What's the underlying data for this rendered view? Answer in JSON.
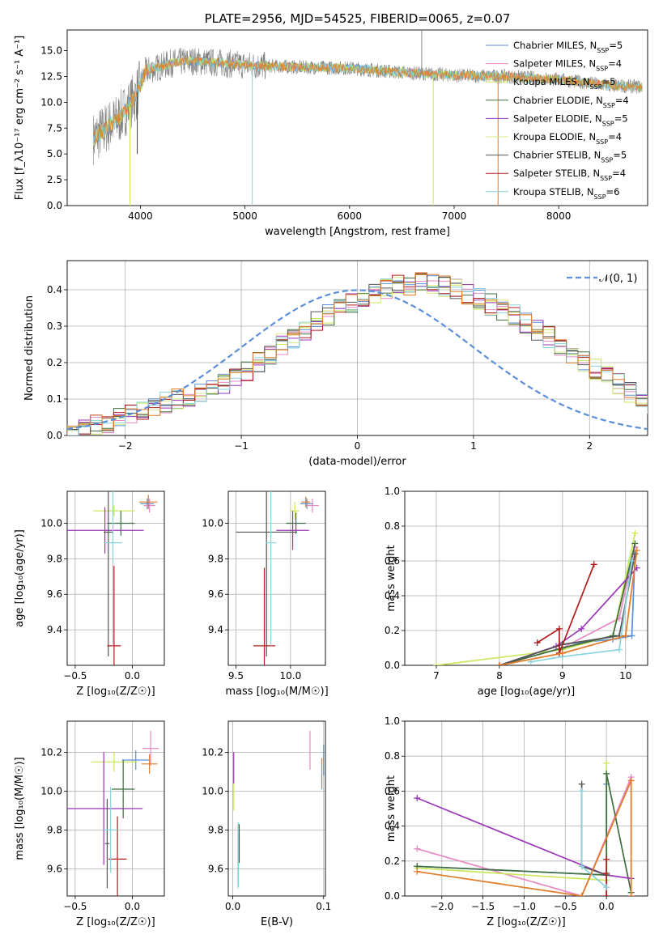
{
  "colors": {
    "Chabrier MILES": "#5b8fd9",
    "Salpeter MILES": "#e78ac3",
    "Kroupa MILES": "#c9e85a",
    "Chabrier ELODIE": "#3f6e3f",
    "Salpeter ELODIE": "#9a35b8",
    "Kroupa ELODIE": "#d8e888",
    "Chabrier STELIB": "#555555",
    "Salpeter STELIB": "#b21c1c",
    "Kroupa STELIB": "#88d3dc",
    "orange": "#e07b28"
  },
  "chart_data": [
    {
      "type": "line",
      "title": "PLATE=2956, MJD=54525, FIBERID=0065, z=0.07",
      "xlabel": "wavelength [Angstrom, rest frame]",
      "ylabel": "Flux [f_λ10⁻¹⁷ erg cm⁻² s⁻¹ A⁻¹]",
      "xlim": [
        3300,
        8850
      ],
      "ylim": [
        0,
        17
      ],
      "xticks": [
        "4000",
        "5000",
        "6000",
        "7000",
        "8000"
      ],
      "yticks": [
        "0.0",
        "2.5",
        "5.0",
        "7.5",
        "10.0",
        "12.5",
        "15.0"
      ],
      "legend_position": "top-right",
      "legend": [
        {
          "name": "Chabrier MILES",
          "nssp": "5"
        },
        {
          "name": "Salpeter MILES",
          "nssp": "4"
        },
        {
          "name": "Kroupa MILES",
          "nssp": "5"
        },
        {
          "name": "Chabrier ELODIE",
          "nssp": "4"
        },
        {
          "name": "Salpeter ELODIE",
          "nssp": "5"
        },
        {
          "name": "Kroupa ELODIE",
          "nssp": "4"
        },
        {
          "name": "Chabrier STELIB",
          "nssp": "5"
        },
        {
          "name": "Salpeter STELIB",
          "nssp": "4"
        },
        {
          "name": "Kroupa STELIB",
          "nssp": "6"
        }
      ],
      "continuum": {
        "x": [
          3550,
          3800,
          3950,
          4050,
          4300,
          4500,
          5000,
          5500,
          6000,
          6500,
          7000,
          7500,
          8000,
          8500,
          8800
        ],
        "y": [
          6.5,
          8.5,
          10.5,
          13.0,
          13.8,
          14.0,
          13.6,
          13.4,
          13.3,
          12.9,
          12.6,
          12.5,
          12.2,
          11.6,
          11.5
        ]
      }
    },
    {
      "type": "step",
      "xlabel": "(data-model)/error",
      "ylabel": "Normed distribution",
      "xlim": [
        -2.5,
        2.5
      ],
      "ylim": [
        0,
        0.48
      ],
      "xticks": [
        "−2",
        "−1",
        "0",
        "1",
        "2"
      ],
      "yticks": [
        "0.0",
        "0.1",
        "0.2",
        "0.3",
        "0.4"
      ],
      "legend_label": "𝒩(0, 1)",
      "legend_position": "top-right",
      "bin_width": 0.1,
      "bin_start": -2.5,
      "base_values": [
        0.018,
        0.024,
        0.03,
        0.036,
        0.045,
        0.055,
        0.068,
        0.08,
        0.09,
        0.1,
        0.108,
        0.118,
        0.13,
        0.14,
        0.16,
        0.18,
        0.2,
        0.225,
        0.25,
        0.27,
        0.29,
        0.31,
        0.33,
        0.345,
        0.36,
        0.375,
        0.39,
        0.4,
        0.41,
        0.415,
        0.42,
        0.415,
        0.41,
        0.4,
        0.39,
        0.375,
        0.36,
        0.345,
        0.33,
        0.31,
        0.29,
        0.27,
        0.25,
        0.225,
        0.2,
        0.18,
        0.16,
        0.14,
        0.12,
        0.105,
        0.09
      ]
    },
    {
      "type": "errorbar",
      "xlabel": "Z [log₁₀(Z/Z☉)]",
      "ylabel": "age  [log₁₀(age/yr)]",
      "xlim": [
        -0.57,
        0.28
      ],
      "ylim": [
        9.2,
        10.18
      ],
      "xticks": [
        "−0.5",
        "0.0"
      ],
      "xtick_values": [
        -0.5,
        0.0
      ],
      "yticks": [
        "9.4",
        "9.6",
        "9.8",
        "10.0"
      ],
      "ytick_values": [
        9.4,
        9.6,
        9.8,
        10.0
      ],
      "points": [
        {
          "s": "Chabrier MILES",
          "x": 0.13,
          "y": 10.11,
          "xe": 0.06,
          "ye": 0.03
        },
        {
          "s": "Salpeter MILES",
          "x": 0.15,
          "y": 10.1,
          "xe": 0.05,
          "ye": 0.04
        },
        {
          "s": "Kroupa MILES",
          "x": -0.16,
          "y": 10.07,
          "xe": 0.18,
          "ye": 0.03
        },
        {
          "s": "Chabrier ELODIE",
          "x": -0.1,
          "y": 10.0,
          "xe": 0.12,
          "ye": 0.07
        },
        {
          "s": "Salpeter ELODIE",
          "x": -0.24,
          "y": 9.96,
          "xe": 0.34,
          "ye": 0.13
        },
        {
          "s": "Chabrier STELIB",
          "x": -0.21,
          "y": 9.95,
          "xe": 0.04,
          "ye": 0.7
        },
        {
          "s": "Salpeter STELIB",
          "x": -0.16,
          "y": 9.31,
          "xe": 0.06,
          "ye": 0.45
        },
        {
          "s": "Kroupa STELIB",
          "x": -0.17,
          "y": 9.89,
          "xe": 0.08,
          "ye": 0.58
        },
        {
          "s": "orange",
          "x": 0.14,
          "y": 10.12,
          "xe": 0.08,
          "ye": 0.04
        }
      ]
    },
    {
      "type": "errorbar",
      "xlabel": "mass [log₁₀(M/M☉)]",
      "xlim": [
        9.43,
        10.32
      ],
      "ylim": [
        9.2,
        10.18
      ],
      "xticks": [
        "9.5",
        "10.0"
      ],
      "xtick_values": [
        9.5,
        10.0
      ],
      "yticks": [
        "9.4",
        "9.6",
        "9.8",
        "10.0"
      ],
      "ytick_values": [
        9.4,
        9.6,
        9.8,
        10.0
      ],
      "points": [
        {
          "s": "Chabrier MILES",
          "x": 10.15,
          "y": 10.11,
          "xe": 0.06,
          "ye": 0.03
        },
        {
          "s": "Salpeter MILES",
          "x": 10.2,
          "y": 10.1,
          "xe": 0.06,
          "ye": 0.04
        },
        {
          "s": "Kroupa MILES",
          "x": 10.04,
          "y": 10.07,
          "xe": 0.04,
          "ye": 0.05
        },
        {
          "s": "Chabrier ELODIE",
          "x": 10.05,
          "y": 10.0,
          "xe": 0.09,
          "ye": 0.06
        },
        {
          "s": "Salpeter ELODIE",
          "x": 10.02,
          "y": 9.96,
          "xe": 0.15,
          "ye": 0.11
        },
        {
          "s": "Chabrier STELIB",
          "x": 9.78,
          "y": 9.95,
          "xe": 0.28,
          "ye": 0.7
        },
        {
          "s": "Salpeter STELIB",
          "x": 9.76,
          "y": 9.31,
          "xe": 0.1,
          "ye": 0.44
        },
        {
          "s": "Kroupa STELIB",
          "x": 9.82,
          "y": 9.89,
          "xe": 0.05,
          "ye": 0.58
        },
        {
          "s": "orange",
          "x": 10.14,
          "y": 10.12,
          "xe": 0.04,
          "ye": 0.03
        }
      ]
    },
    {
      "type": "line",
      "xlabel": "age  [log₁₀(age/yr)]",
      "ylabel": "mass weight",
      "xlim": [
        6.5,
        10.35
      ],
      "ylim": [
        0,
        1.0
      ],
      "xticks": [
        "7",
        "8",
        "9",
        "10"
      ],
      "xtick_values": [
        7,
        8,
        9,
        10
      ],
      "yticks": [
        "0.0",
        "0.2",
        "0.4",
        "0.6",
        "0.8",
        "1.0"
      ],
      "ytick_values": [
        0,
        0.2,
        0.4,
        0.6,
        0.8,
        1.0
      ],
      "series": [
        {
          "s": "Chabrier MILES",
          "x": [
            8.0,
            9.0,
            9.8,
            10.1,
            10.15
          ],
          "y": [
            0.0,
            0.12,
            0.15,
            0.17,
            0.64
          ]
        },
        {
          "s": "Salpeter MILES",
          "x": [
            8.0,
            9.0,
            9.9,
            10.15
          ],
          "y": [
            0.0,
            0.1,
            0.27,
            0.68
          ]
        },
        {
          "s": "Kroupa MILES",
          "x": [
            7.0,
            9.0,
            9.8,
            10.15
          ],
          "y": [
            0.0,
            0.09,
            0.17,
            0.76
          ]
        },
        {
          "s": "Chabrier ELODIE",
          "x": [
            8.0,
            9.0,
            9.8,
            10.15
          ],
          "y": [
            0.0,
            0.1,
            0.17,
            0.7
          ]
        },
        {
          "s": "Salpeter ELODIE",
          "x": [
            8.0,
            8.9,
            9.3,
            10.18
          ],
          "y": [
            0.0,
            0.11,
            0.21,
            0.56
          ]
        },
        {
          "s": "Chabrier STELIB",
          "x": [
            8.0,
            9.0,
            9.9,
            10.15
          ],
          "y": [
            0.0,
            0.12,
            0.17,
            0.64
          ]
        },
        {
          "s": "Salpeter STELIB",
          "x": [
            8.6,
            8.95,
            8.95,
            9.5
          ],
          "y": [
            0.13,
            0.21,
            0.07,
            0.58
          ]
        },
        {
          "s": "Kroupa STELIB",
          "x": [
            8.5,
            9.0,
            9.9,
            10.1
          ],
          "y": [
            0.02,
            0.05,
            0.09,
            0.6
          ]
        },
        {
          "s": "orange",
          "x": [
            8.0,
            9.0,
            10.0,
            10.18
          ],
          "y": [
            0.0,
            0.07,
            0.17,
            0.66
          ]
        }
      ]
    },
    {
      "type": "errorbar",
      "xlabel": "Z [log₁₀(Z/Z☉)]",
      "ylabel": "mass [log₁₀(M/M☉)]",
      "xlim": [
        -0.57,
        0.28
      ],
      "ylim": [
        9.46,
        10.36
      ],
      "xticks": [
        "−0.5",
        "0.0"
      ],
      "xtick_values": [
        -0.5,
        0.0
      ],
      "yticks": [
        "9.6",
        "9.8",
        "10.0",
        "10.2"
      ],
      "ytick_values": [
        9.6,
        9.8,
        10.0,
        10.2
      ],
      "points": [
        {
          "s": "Chabrier MILES",
          "x": 0.03,
          "y": 10.16,
          "xe": 0.12,
          "ye": 0.05
        },
        {
          "s": "Salpeter MILES",
          "x": 0.16,
          "y": 10.22,
          "xe": 0.07,
          "ye": 0.09
        },
        {
          "s": "Kroupa MILES",
          "x": -0.16,
          "y": 10.15,
          "xe": 0.2,
          "ye": 0.05
        },
        {
          "s": "Chabrier ELODIE",
          "x": -0.08,
          "y": 10.01,
          "xe": 0.1,
          "ye": 0.15
        },
        {
          "s": "Salpeter ELODIE",
          "x": -0.25,
          "y": 9.91,
          "xe": 0.34,
          "ye": 0.29
        },
        {
          "s": "Chabrier STELIB",
          "x": -0.22,
          "y": 9.73,
          "xe": 0.02,
          "ye": 0.23
        },
        {
          "s": "Salpeter STELIB",
          "x": -0.13,
          "y": 9.65,
          "xe": 0.08,
          "ye": 0.22
        },
        {
          "s": "Kroupa STELIB",
          "x": -0.19,
          "y": 9.8,
          "xe": 0.06,
          "ye": 0.22
        },
        {
          "s": "orange",
          "x": 0.15,
          "y": 10.14,
          "xe": 0.07,
          "ye": 0.05
        }
      ]
    },
    {
      "type": "errorbar",
      "xlabel": "E(B-V)",
      "xlim": [
        -0.005,
        0.102
      ],
      "ylim": [
        9.46,
        10.36
      ],
      "xticks": [
        "0.0",
        "0.1"
      ],
      "xtick_values": [
        0.0,
        0.1
      ],
      "yticks": [
        "9.6",
        "9.8",
        "10.0",
        "10.2"
      ],
      "ytick_values": [
        9.6,
        9.8,
        10.0,
        10.2
      ],
      "points": [
        {
          "s": "Chabrier MILES",
          "x": 0.1,
          "y": 10.16,
          "xe": 0.0,
          "ye": 0.08
        },
        {
          "s": "Salpeter MILES",
          "x": 0.085,
          "y": 10.21,
          "xe": 0.0,
          "ye": 0.1
        },
        {
          "s": "Kroupa MILES",
          "x": 0.001,
          "y": 10.05,
          "xe": 0.0,
          "ye": 0.15
        },
        {
          "s": "Salpeter ELODIE",
          "x": 0.001,
          "y": 10.12,
          "xe": 0.0,
          "ye": 0.08
        },
        {
          "s": "Chabrier STELIB",
          "x": 0.006,
          "y": 9.67,
          "xe": 0.0,
          "ye": 0.16
        },
        {
          "s": "Salpeter STELIB",
          "x": 0.007,
          "y": 9.73,
          "xe": 0.0,
          "ye": 0.1
        },
        {
          "s": "Kroupa STELIB",
          "x": 0.006,
          "y": 9.67,
          "xe": 0.0,
          "ye": 0.17
        },
        {
          "s": "orange",
          "x": 0.098,
          "y": 10.09,
          "xe": 0.0,
          "ye": 0.08
        }
      ]
    },
    {
      "type": "line",
      "xlabel": "Z [log₁₀(Z/Z☉)]",
      "ylabel": "mass weight",
      "xlim": [
        -2.45,
        0.5
      ],
      "ylim": [
        0,
        1.0
      ],
      "xticks": [
        "−2.0",
        "−1.5",
        "−1.0",
        "−0.5",
        "0.0"
      ],
      "xtick_values": [
        -2.0,
        -1.5,
        -1.0,
        -0.5,
        0.0
      ],
      "yticks": [
        "0.0",
        "0.2",
        "0.4",
        "0.6",
        "0.8",
        "1.0"
      ],
      "ytick_values": [
        0,
        0.2,
        0.4,
        0.6,
        0.8,
        1.0
      ],
      "series": [
        {
          "s": "Chabrier MILES",
          "x": [
            -2.3,
            0.0,
            0.0
          ],
          "y": [
            0.17,
            0.12,
            0.64
          ]
        },
        {
          "s": "Salpeter MILES",
          "x": [
            -2.3,
            -0.3,
            0.3,
            0.3
          ],
          "y": [
            0.27,
            0.0,
            0.68,
            0.0
          ]
        },
        {
          "s": "Kroupa MILES",
          "x": [
            -2.3,
            0.0,
            0.0
          ],
          "y": [
            0.16,
            0.09,
            0.76
          ]
        },
        {
          "s": "Chabrier ELODIE",
          "x": [
            -2.3,
            0.0,
            0.0,
            0.3
          ],
          "y": [
            0.17,
            0.12,
            0.7,
            0.02
          ]
        },
        {
          "s": "Salpeter ELODIE",
          "x": [
            -2.3,
            0.0,
            0.3
          ],
          "y": [
            0.56,
            0.12,
            0.1
          ]
        },
        {
          "s": "Chabrier STELIB",
          "x": [
            -0.3,
            -0.3,
            0.0,
            0.0
          ],
          "y": [
            0.64,
            0.17,
            0.12,
            0.0
          ]
        },
        {
          "s": "Salpeter STELIB",
          "x": [
            0.0,
            0.0,
            0.0
          ],
          "y": [
            0.21,
            0.13,
            0.0
          ]
        },
        {
          "s": "Kroupa STELIB",
          "x": [
            -0.3,
            -0.3,
            0.0
          ],
          "y": [
            0.6,
            0.17,
            0.05
          ]
        },
        {
          "s": "orange",
          "x": [
            -2.3,
            -0.3,
            0.3,
            0.3
          ],
          "y": [
            0.14,
            0.0,
            0.66,
            0.0
          ]
        }
      ]
    }
  ]
}
